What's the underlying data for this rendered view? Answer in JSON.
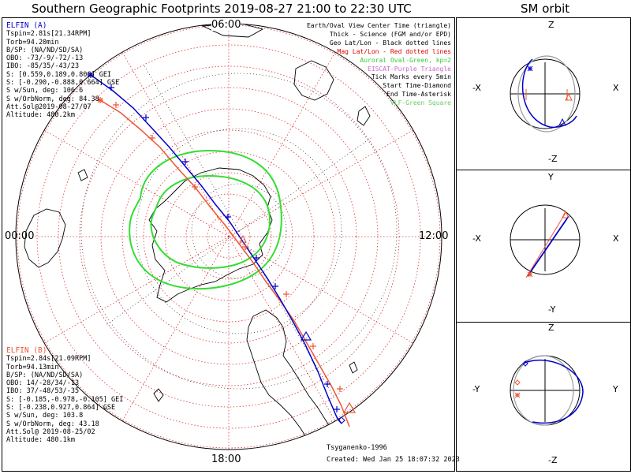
{
  "title": "Southern Geographic Footprints 2019-08-27 21:00 to 22:30 UTC",
  "sm_title": "SM orbit",
  "hour_labels": {
    "top": "06:00",
    "left": "00:00",
    "right": "12:00",
    "bottom": "18:00"
  },
  "legend": [
    {
      "text": "Earth/Oval View Center Time (triangle)",
      "color": "#000000"
    },
    {
      "text": "Thick - Science (FGM and/or EPD)",
      "color": "#000000"
    },
    {
      "text": "Geo Lat/Lon - Black dotted lines",
      "color": "#000000"
    },
    {
      "text": "Mag Lat/Lon - Red dotted lines",
      "color": "#dd0000"
    },
    {
      "text": "Auroral Oval-Green, kp=2",
      "color": "#33cc33"
    },
    {
      "text": "EISCAT-Purple Triangle",
      "color": "#cc66cc"
    },
    {
      "text": "Tick Marks every 5min",
      "color": "#000000"
    },
    {
      "text": "Start Time-Diamond",
      "color": "#000000"
    },
    {
      "text": "End Time-Asterisk",
      "color": "#000000"
    },
    {
      "text": "VLF-Green Square",
      "color": "#66cc66"
    }
  ],
  "elfin_a": {
    "name": "ELFIN (A)",
    "color": "#0000cc",
    "lines": [
      "Tspin=2.81s[21.34RPM]",
      "Torb=94.20min",
      "B/SP: (NA/ND/SD/SA)",
      "OBO: -73/-9/-72/-13",
      "IBO: -85/35/-43/23",
      "S: [0.559,0.189,0.806] GEI",
      "S: [-0.290,-0.888,0.664] GSE",
      "S w/Sun, deg: 106.6",
      "S w/OrbNorm, deg: 84.38",
      "Att.Sol@2019-08-27/07",
      "Altitude: 480.2km"
    ]
  },
  "elfin_b": {
    "name": "ELFIN (B)",
    "color": "#ee5533",
    "lines": [
      "Tspin=2.84s[21.09RPM]",
      "Torb=94.13min",
      "B/SP: (NA/ND/SD/SA)",
      "OBO: 14/-28/34/-13",
      "IBO: 37/-48/53/-35",
      "S: [-0.185,-0.978,-0.105] GEI",
      "S: [-0.238,0.927,0.864] GSE",
      "S w/Sun, deg: 103.8",
      "S w/OrbNorm, deg: 43.18",
      "Att.Sol@ 2019-08-25/02",
      "Altitude: 480.1km"
    ]
  },
  "footer": {
    "model": "Tsyganenko-1996",
    "created": "Created: Wed Jan 25 18:07:32 2023"
  },
  "sm_panels": [
    {
      "top": "Z",
      "bottom": "-Z",
      "left": "-X",
      "right": "X"
    },
    {
      "top": "Y",
      "bottom": "-Y",
      "left": "-X",
      "right": "X"
    },
    {
      "top": "Z",
      "bottom": "-Z",
      "left": "-Y",
      "right": "Y"
    }
  ],
  "colors": {
    "elfin_a": "#0000cc",
    "elfin_b": "#ee5533",
    "aurora": "#33dd33",
    "mag_grid": "#dd3333",
    "geo_grid": "#000000"
  }
}
